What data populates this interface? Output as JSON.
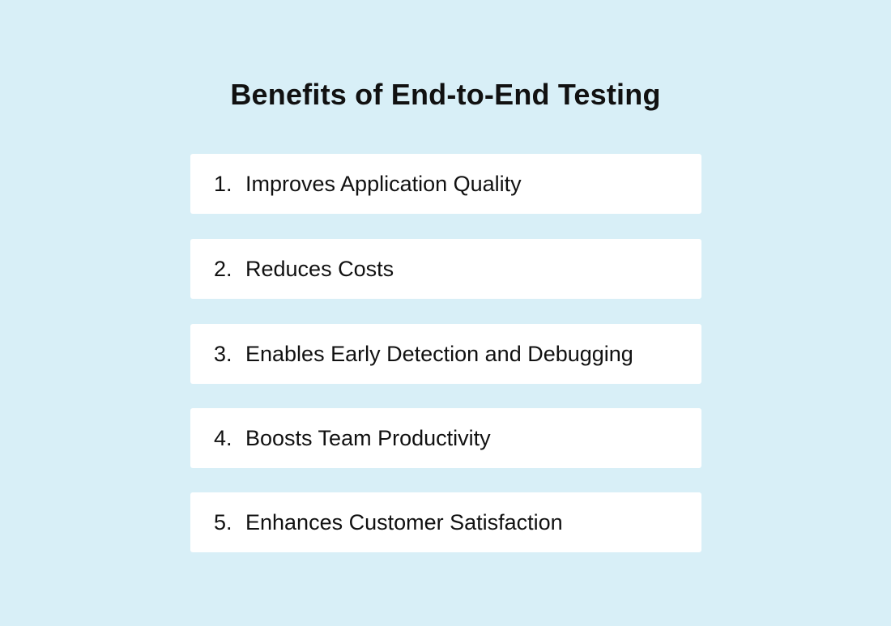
{
  "title": "Benefits of End-to-End Testing",
  "items": [
    {
      "number": "1.",
      "label": "Improves Application Quality"
    },
    {
      "number": "2.",
      "label": "Reduces Costs"
    },
    {
      "number": "3.",
      "label": "Enables Early Detection and Debugging"
    },
    {
      "number": "4.",
      "label": "Boosts Team Productivity"
    },
    {
      "number": "5.",
      "label": "Enhances Customer Satisfaction"
    }
  ],
  "colors": {
    "background": "#d8eff7",
    "card": "#ffffff",
    "text": "#111111"
  }
}
